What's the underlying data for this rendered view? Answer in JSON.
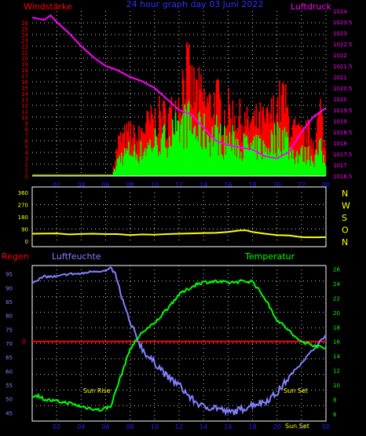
{
  "header": {
    "left_title": "Windstärke",
    "center_title": "24 hour graph day  03 Juni 2022",
    "right_title": "Luftdruck"
  },
  "colors": {
    "background": "#000000",
    "wind_gust": "#ff0000",
    "wind_avg": "#00ff00",
    "pressure": "#ff00ff",
    "wind_dir": "#ffff00",
    "humidity": "#8080ff",
    "temperature": "#00ff00",
    "rain": "#ff0000",
    "tick_text": "#2020ff",
    "grid": "#c8c8c8"
  },
  "chart_data": [
    {
      "type": "bar",
      "title": "24 hour graph day  03 Juni 2022",
      "left_axis_title": "Windstärke",
      "right_axis_title": "Luftdruck",
      "x_ticks": [
        "02",
        "04",
        "06",
        "08",
        "10",
        "12",
        "14",
        "16",
        "18",
        "20",
        "22",
        "00"
      ],
      "y_left_ticks": [
        "0",
        "1",
        "2",
        "3",
        "4",
        "5",
        "6",
        "7",
        "8",
        "9",
        "10",
        "11",
        "12",
        "13",
        "14",
        "15",
        "16",
        "17",
        "18",
        "19",
        "20",
        "21",
        "22",
        "23",
        "24",
        "25",
        "26"
      ],
      "y_left_range": [
        0,
        28
      ],
      "y_right_ticks": [
        "1016.5",
        "1017",
        "1017.5",
        "1018",
        "1018.5",
        "1019",
        "1019.5",
        "1020",
        "1020.5",
        "1021",
        "1021.5",
        "1022",
        "1022.5",
        "1023",
        "1023.5",
        "1024"
      ],
      "y_right_range": [
        1016.5,
        1024
      ],
      "grid": "dotted",
      "wind_gust_envelope": {
        "hours": [
          0,
          6.5,
          6.8,
          7,
          7.5,
          8,
          8.5,
          9,
          9.5,
          10,
          10.5,
          11,
          11.5,
          12,
          12.5,
          13,
          13.5,
          14,
          14.5,
          15,
          15.5,
          16,
          16.5,
          17,
          17.5,
          18,
          18.5,
          19,
          19.5,
          20,
          20.5,
          21,
          21.5,
          22,
          22.5,
          23,
          23.5,
          24
        ],
        "values": [
          0.3,
          0.3,
          5,
          8,
          9,
          10,
          8,
          11,
          12,
          13,
          14,
          13,
          15,
          18,
          25,
          20,
          19,
          17,
          16,
          18,
          14,
          15,
          14,
          13,
          12,
          12,
          13,
          12,
          14,
          16,
          18,
          12,
          10,
          9,
          10,
          8,
          15,
          4
        ]
      },
      "wind_avg_envelope": {
        "hours": [
          0,
          6.5,
          6.8,
          7,
          7.5,
          8,
          8.5,
          9,
          9.5,
          10,
          10.5,
          11,
          11.5,
          12,
          12.5,
          13,
          13.5,
          14,
          14.5,
          15,
          15.5,
          16,
          16.5,
          17,
          17.5,
          18,
          18.5,
          19,
          19.5,
          20,
          20.5,
          21,
          21.5,
          22,
          22.5,
          23,
          23.5,
          24
        ],
        "values": [
          0.2,
          0.2,
          2,
          4,
          5,
          6,
          5,
          6,
          7,
          8,
          8,
          9,
          10,
          11,
          13,
          11,
          10,
          10,
          9,
          10,
          8,
          8,
          8,
          7,
          7,
          6,
          7,
          6,
          8,
          9,
          10,
          6,
          5,
          5,
          5,
          4,
          6,
          2
        ]
      },
      "pressure": {
        "hours": [
          0,
          1,
          1.5,
          2,
          3,
          4,
          5,
          6,
          7,
          8,
          9,
          10,
          11,
          12,
          12.5,
          13,
          14,
          15,
          16,
          17,
          18,
          19,
          20,
          21,
          22,
          23,
          24
        ],
        "values": [
          1023.7,
          1023.6,
          1023.8,
          1023.5,
          1023.0,
          1022.4,
          1021.9,
          1021.5,
          1021.3,
          1021.0,
          1020.8,
          1020.5,
          1020.0,
          1019.5,
          1019.4,
          1019.3,
          1018.7,
          1018.1,
          1017.9,
          1017.8,
          1017.7,
          1017.4,
          1017.3,
          1017.6,
          1018.5,
          1019.2,
          1019.6
        ]
      }
    },
    {
      "type": "line",
      "series_name": "wind direction",
      "x_ticks": [
        "02",
        "04",
        "06",
        "08",
        "10",
        "12",
        "14",
        "16",
        "18",
        "20",
        "22",
        "00"
      ],
      "y_left_ticks": [
        "360",
        "270",
        "180",
        "90",
        "0"
      ],
      "y_right_ticks": [
        "N",
        "W",
        "S",
        "O",
        "N"
      ],
      "y_range": [
        0,
        360
      ],
      "wind_direction": {
        "hours": [
          0,
          2,
          3,
          4,
          5,
          6,
          7,
          8,
          9,
          10,
          11,
          12,
          13,
          14,
          15,
          16,
          17,
          17.5,
          18,
          19,
          20,
          21,
          22,
          23,
          24
        ],
        "values": [
          55,
          57,
          50,
          53,
          55,
          52,
          52,
          45,
          50,
          48,
          52,
          55,
          57,
          60,
          62,
          68,
          80,
          80,
          68,
          55,
          45,
          42,
          30,
          28,
          30
        ]
      }
    },
    {
      "type": "line",
      "left_labels": [
        "Regen",
        "Luftfeuchte"
      ],
      "right_axis_title": "Temperatur",
      "x_ticks": [
        "02",
        "04",
        "06",
        "08",
        "10",
        "12",
        "14",
        "16",
        "18",
        "20",
        "22",
        "00"
      ],
      "y_left_ticks": [
        "95",
        "90",
        "85",
        "80",
        "75",
        "70",
        "65",
        "60",
        "55",
        "50",
        "45"
      ],
      "y_left_range": [
        42,
        98
      ],
      "y_right_ticks": [
        "26",
        "24",
        "22",
        "20",
        "18",
        "16",
        "14",
        "12",
        "10",
        "8",
        "6"
      ],
      "y_right_range": [
        5,
        26.5
      ],
      "rain_label": "0",
      "rain_value": 0,
      "annotations": [
        "Sun Rise",
        "Sun Set",
        "Sun Set"
      ],
      "humidity": {
        "hours": [
          0,
          1,
          2,
          3,
          4,
          5,
          6,
          6.4,
          6.8,
          7.2,
          8,
          9,
          9.5,
          10,
          10.5,
          11,
          12,
          13,
          14,
          15,
          16,
          17,
          18,
          19,
          20,
          21,
          22,
          23,
          24
        ],
        "values": [
          92,
          94,
          94,
          95,
          95,
          96,
          96,
          97,
          95,
          88,
          77,
          68,
          65,
          63,
          61,
          58,
          55,
          50,
          47,
          47,
          45,
          46,
          48,
          49,
          52,
          58,
          63,
          68,
          73
        ]
      },
      "temperature": {
        "hours": [
          0,
          0.5,
          1,
          2,
          3,
          4,
          5,
          5.5,
          6,
          6.4,
          7,
          7.5,
          8,
          9,
          10,
          11,
          12,
          13,
          13.5,
          14,
          15,
          16,
          17,
          18,
          19,
          20,
          21,
          21.5,
          22,
          23,
          24
        ],
        "values": [
          8.5,
          8.5,
          8.0,
          7.7,
          7.5,
          7.0,
          6.7,
          6.5,
          6.8,
          7.0,
          10,
          12.5,
          15,
          17.3,
          18.5,
          20.5,
          22.5,
          23.5,
          24.0,
          24.2,
          24.3,
          24.1,
          24.3,
          24.3,
          22,
          19,
          17.5,
          16.5,
          16,
          15.5,
          15
        ]
      }
    }
  ]
}
